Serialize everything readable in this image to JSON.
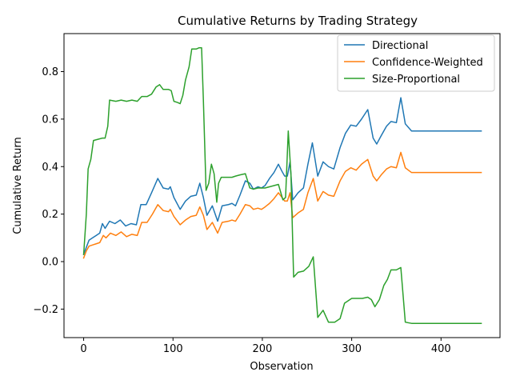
{
  "chart_data": {
    "type": "line",
    "title": "Cumulative Returns by Trading Strategy",
    "xlabel": "Observation",
    "ylabel": "Cumulative Return",
    "xlim": [
      -22,
      466
    ],
    "ylim": [
      -0.32,
      0.96
    ],
    "xticks": [
      0,
      100,
      200,
      300,
      400
    ],
    "yticks": [
      -0.2,
      0.0,
      0.2,
      0.4,
      0.6,
      0.8
    ],
    "ytick_labels": [
      "−0.2",
      "0.0",
      "0.2",
      "0.4",
      "0.6",
      "0.8"
    ],
    "grid": false,
    "legend_position": "top-right",
    "series": [
      {
        "name": "Directional",
        "color": "#1f77b4",
        "points": [
          [
            0,
            0.03
          ],
          [
            3,
            0.06
          ],
          [
            6,
            0.09
          ],
          [
            10,
            0.1
          ],
          [
            14,
            0.11
          ],
          [
            18,
            0.12
          ],
          [
            21,
            0.16
          ],
          [
            24,
            0.14
          ],
          [
            29,
            0.17
          ],
          [
            35,
            0.16
          ],
          [
            41,
            0.175
          ],
          [
            47,
            0.15
          ],
          [
            53,
            0.16
          ],
          [
            59,
            0.155
          ],
          [
            64,
            0.24
          ],
          [
            70,
            0.24
          ],
          [
            76,
            0.29
          ],
          [
            83,
            0.35
          ],
          [
            89,
            0.31
          ],
          [
            95,
            0.305
          ],
          [
            97,
            0.315
          ],
          [
            101,
            0.27
          ],
          [
            108,
            0.22
          ],
          [
            114,
            0.255
          ],
          [
            120,
            0.275
          ],
          [
            126,
            0.28
          ],
          [
            130,
            0.33
          ],
          [
            134,
            0.27
          ],
          [
            138,
            0.195
          ],
          [
            144,
            0.235
          ],
          [
            150,
            0.17
          ],
          [
            155,
            0.235
          ],
          [
            162,
            0.24
          ],
          [
            166,
            0.245
          ],
          [
            170,
            0.235
          ],
          [
            175,
            0.28
          ],
          [
            181,
            0.34
          ],
          [
            186,
            0.33
          ],
          [
            190,
            0.305
          ],
          [
            195,
            0.315
          ],
          [
            199,
            0.31
          ],
          [
            203,
            0.32
          ],
          [
            208,
            0.35
          ],
          [
            213,
            0.375
          ],
          [
            218,
            0.41
          ],
          [
            222,
            0.38
          ],
          [
            225,
            0.36
          ],
          [
            228,
            0.36
          ],
          [
            231,
            0.42
          ],
          [
            234,
            0.26
          ],
          [
            240,
            0.29
          ],
          [
            246,
            0.31
          ],
          [
            251,
            0.41
          ],
          [
            256,
            0.5
          ],
          [
            262,
            0.36
          ],
          [
            268,
            0.42
          ],
          [
            274,
            0.4
          ],
          [
            280,
            0.39
          ],
          [
            287,
            0.48
          ],
          [
            293,
            0.54
          ],
          [
            299,
            0.575
          ],
          [
            305,
            0.57
          ],
          [
            311,
            0.6
          ],
          [
            318,
            0.64
          ],
          [
            324,
            0.52
          ],
          [
            328,
            0.495
          ],
          [
            333,
            0.53
          ],
          [
            339,
            0.57
          ],
          [
            344,
            0.59
          ],
          [
            350,
            0.585
          ],
          [
            355,
            0.69
          ],
          [
            360,
            0.58
          ],
          [
            367,
            0.55
          ],
          [
            445,
            0.55
          ]
        ]
      },
      {
        "name": "Confidence-Weighted",
        "color": "#ff7f0e",
        "points": [
          [
            0,
            0.015
          ],
          [
            3,
            0.045
          ],
          [
            6,
            0.065
          ],
          [
            10,
            0.07
          ],
          [
            14,
            0.075
          ],
          [
            18,
            0.08
          ],
          [
            22,
            0.11
          ],
          [
            25,
            0.1
          ],
          [
            30,
            0.12
          ],
          [
            36,
            0.11
          ],
          [
            42,
            0.125
          ],
          [
            48,
            0.105
          ],
          [
            54,
            0.115
          ],
          [
            60,
            0.11
          ],
          [
            65,
            0.165
          ],
          [
            71,
            0.165
          ],
          [
            77,
            0.2
          ],
          [
            83,
            0.24
          ],
          [
            89,
            0.215
          ],
          [
            95,
            0.21
          ],
          [
            97,
            0.22
          ],
          [
            101,
            0.19
          ],
          [
            108,
            0.155
          ],
          [
            114,
            0.175
          ],
          [
            120,
            0.19
          ],
          [
            126,
            0.195
          ],
          [
            130,
            0.23
          ],
          [
            134,
            0.195
          ],
          [
            138,
            0.135
          ],
          [
            144,
            0.165
          ],
          [
            150,
            0.12
          ],
          [
            155,
            0.165
          ],
          [
            162,
            0.17
          ],
          [
            166,
            0.175
          ],
          [
            170,
            0.17
          ],
          [
            175,
            0.2
          ],
          [
            181,
            0.24
          ],
          [
            186,
            0.235
          ],
          [
            190,
            0.22
          ],
          [
            195,
            0.225
          ],
          [
            199,
            0.22
          ],
          [
            203,
            0.23
          ],
          [
            208,
            0.245
          ],
          [
            213,
            0.265
          ],
          [
            218,
            0.29
          ],
          [
            222,
            0.27
          ],
          [
            225,
            0.255
          ],
          [
            228,
            0.255
          ],
          [
            231,
            0.29
          ],
          [
            234,
            0.185
          ],
          [
            240,
            0.205
          ],
          [
            246,
            0.22
          ],
          [
            251,
            0.29
          ],
          [
            257,
            0.35
          ],
          [
            262,
            0.255
          ],
          [
            268,
            0.295
          ],
          [
            274,
            0.28
          ],
          [
            280,
            0.275
          ],
          [
            287,
            0.34
          ],
          [
            293,
            0.38
          ],
          [
            299,
            0.395
          ],
          [
            305,
            0.385
          ],
          [
            311,
            0.41
          ],
          [
            318,
            0.43
          ],
          [
            324,
            0.36
          ],
          [
            328,
            0.34
          ],
          [
            333,
            0.365
          ],
          [
            339,
            0.39
          ],
          [
            344,
            0.4
          ],
          [
            350,
            0.395
          ],
          [
            355,
            0.46
          ],
          [
            360,
            0.395
          ],
          [
            367,
            0.375
          ],
          [
            445,
            0.375
          ]
        ]
      },
      {
        "name": "Size-Proportional",
        "color": "#2ca02c",
        "points": [
          [
            0,
            0.03
          ],
          [
            3,
            0.2
          ],
          [
            5,
            0.39
          ],
          [
            8,
            0.43
          ],
          [
            11,
            0.51
          ],
          [
            16,
            0.515
          ],
          [
            21,
            0.52
          ],
          [
            24,
            0.52
          ],
          [
            27,
            0.57
          ],
          [
            29,
            0.68
          ],
          [
            36,
            0.675
          ],
          [
            42,
            0.68
          ],
          [
            48,
            0.675
          ],
          [
            54,
            0.68
          ],
          [
            60,
            0.675
          ],
          [
            65,
            0.695
          ],
          [
            71,
            0.695
          ],
          [
            76,
            0.705
          ],
          [
            81,
            0.735
          ],
          [
            85,
            0.745
          ],
          [
            89,
            0.725
          ],
          [
            95,
            0.725
          ],
          [
            98,
            0.72
          ],
          [
            101,
            0.675
          ],
          [
            105,
            0.67
          ],
          [
            108,
            0.665
          ],
          [
            111,
            0.7
          ],
          [
            114,
            0.765
          ],
          [
            118,
            0.82
          ],
          [
            121,
            0.895
          ],
          [
            126,
            0.895
          ],
          [
            129,
            0.9
          ],
          [
            132,
            0.9
          ],
          [
            134,
            0.68
          ],
          [
            137,
            0.3
          ],
          [
            140,
            0.33
          ],
          [
            143,
            0.41
          ],
          [
            146,
            0.37
          ],
          [
            149,
            0.25
          ],
          [
            151,
            0.33
          ],
          [
            154,
            0.355
          ],
          [
            160,
            0.355
          ],
          [
            166,
            0.355
          ],
          [
            170,
            0.36
          ],
          [
            175,
            0.365
          ],
          [
            181,
            0.37
          ],
          [
            186,
            0.31
          ],
          [
            190,
            0.305
          ],
          [
            195,
            0.31
          ],
          [
            203,
            0.31
          ],
          [
            208,
            0.315
          ],
          [
            213,
            0.32
          ],
          [
            218,
            0.325
          ],
          [
            223,
            0.26
          ],
          [
            226,
            0.27
          ],
          [
            229,
            0.55
          ],
          [
            232,
            0.37
          ],
          [
            235,
            -0.065
          ],
          [
            240,
            -0.045
          ],
          [
            246,
            -0.04
          ],
          [
            252,
            -0.02
          ],
          [
            257,
            0.02
          ],
          [
            262,
            -0.235
          ],
          [
            268,
            -0.205
          ],
          [
            274,
            -0.255
          ],
          [
            281,
            -0.255
          ],
          [
            287,
            -0.24
          ],
          [
            292,
            -0.175
          ],
          [
            296,
            -0.165
          ],
          [
            300,
            -0.155
          ],
          [
            306,
            -0.155
          ],
          [
            312,
            -0.155
          ],
          [
            318,
            -0.15
          ],
          [
            322,
            -0.16
          ],
          [
            326,
            -0.19
          ],
          [
            331,
            -0.16
          ],
          [
            336,
            -0.1
          ],
          [
            340,
            -0.075
          ],
          [
            344,
            -0.035
          ],
          [
            350,
            -0.035
          ],
          [
            355,
            -0.025
          ],
          [
            360,
            -0.255
          ],
          [
            367,
            -0.26
          ],
          [
            445,
            -0.26
          ]
        ]
      }
    ]
  }
}
